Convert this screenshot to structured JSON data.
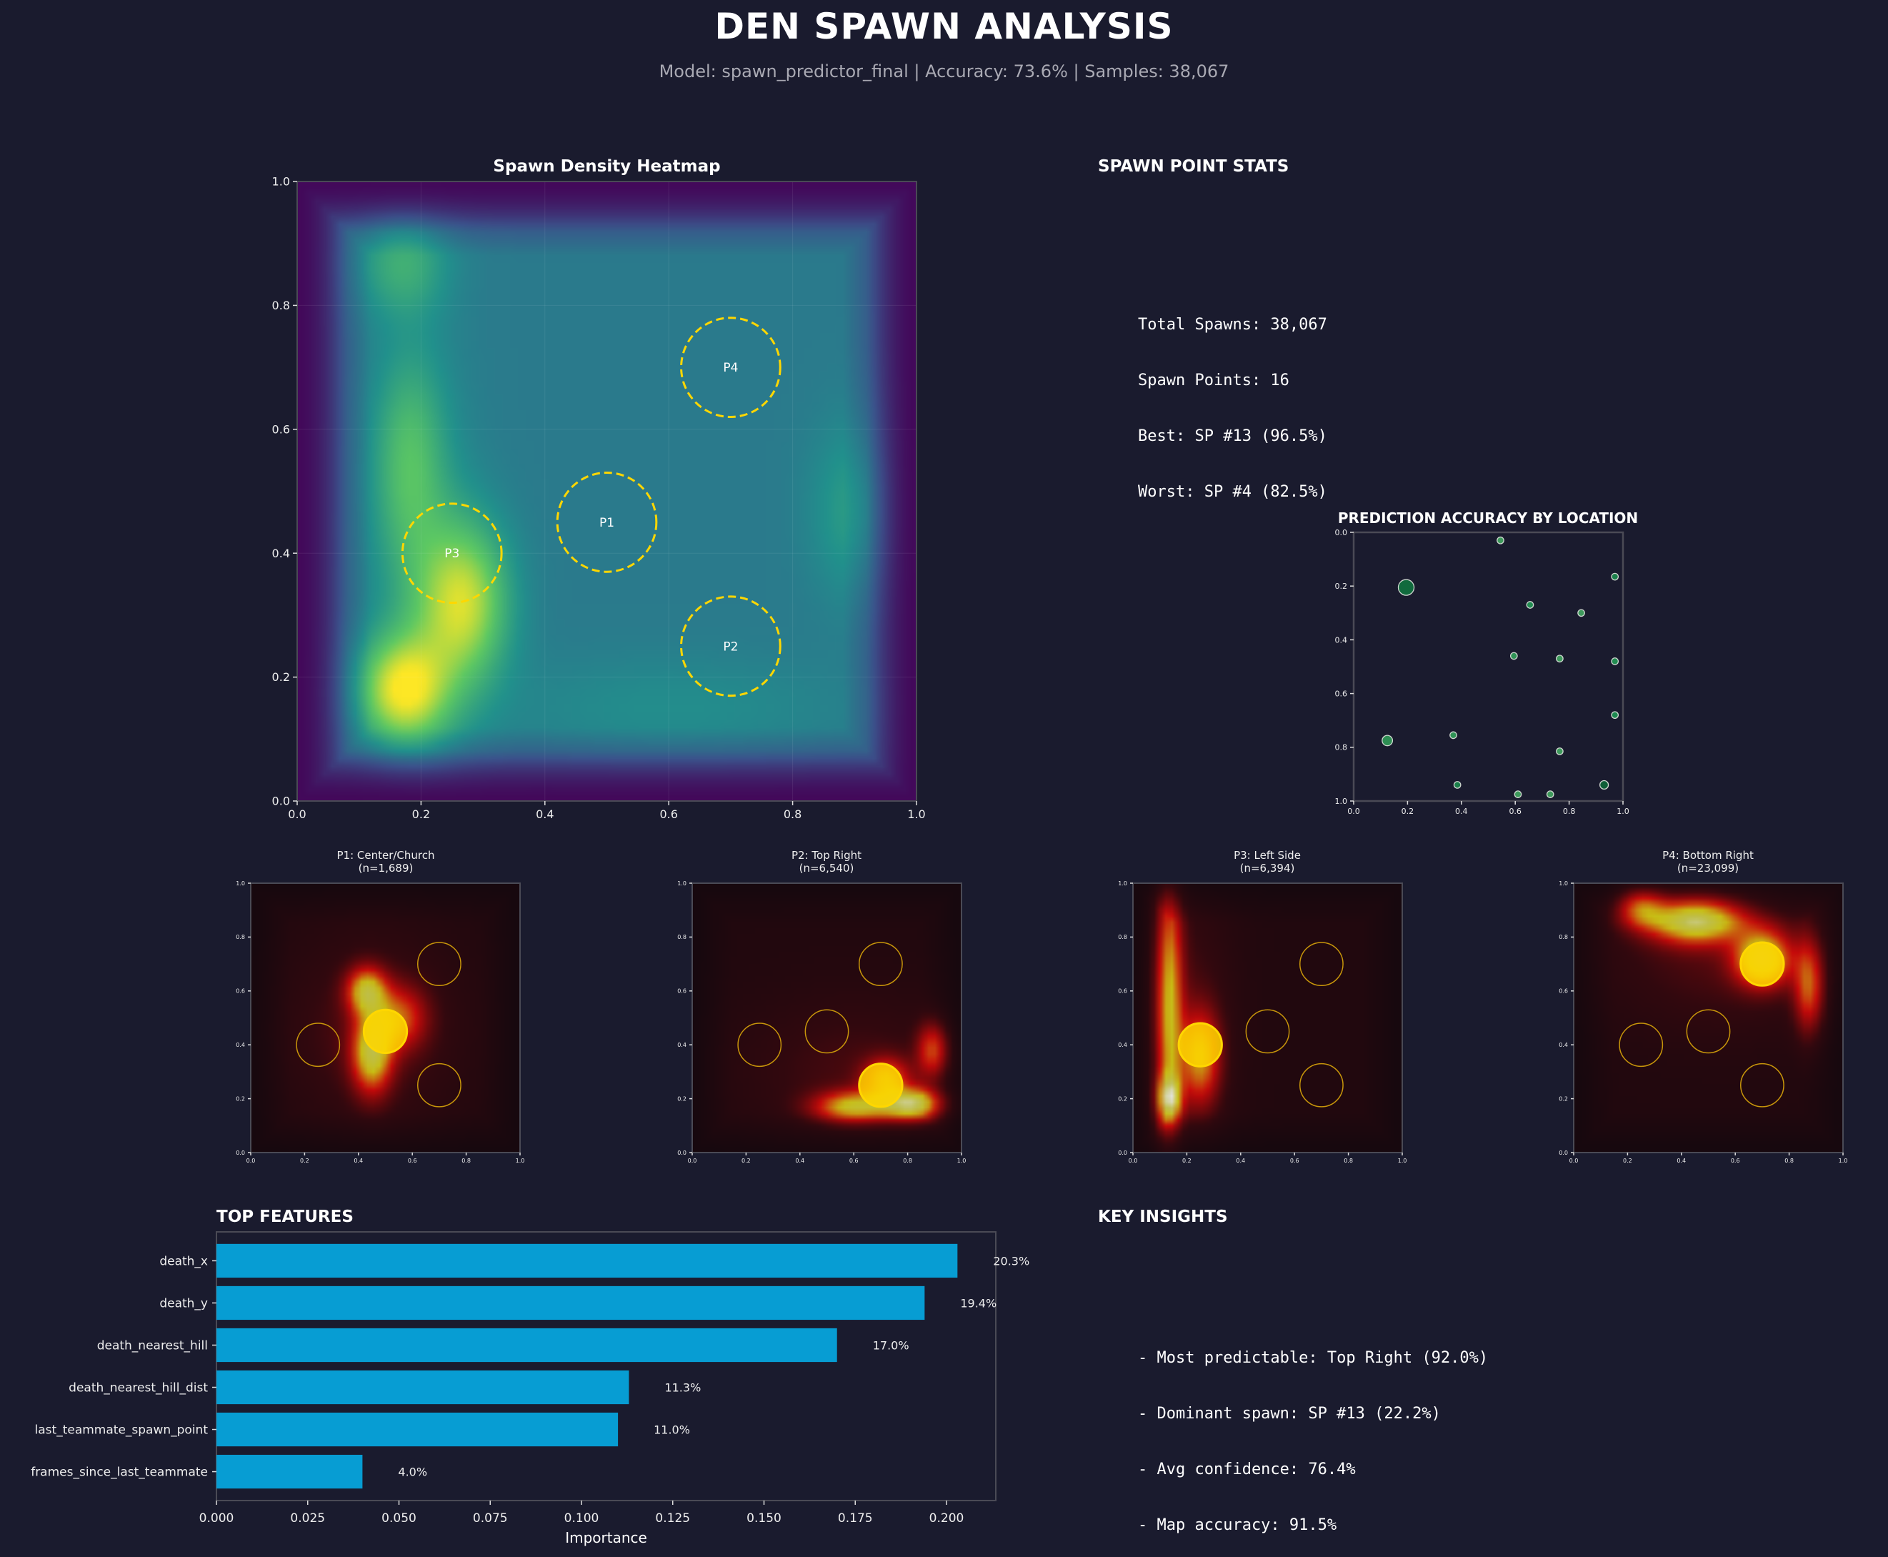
{
  "header": {
    "title": "DEN SPAWN ANALYSIS",
    "subtitle": "Model: spawn_predictor_final | Accuracy: 73.6% | Samples: 38,067"
  },
  "stats": {
    "title": "SPAWN POINT STATS",
    "lines": [
      "Total Spawns: 38,067",
      "Spawn Points: 16",
      "Best: SP #13 (96.5%)",
      "Worst: SP #4 (82.5%)"
    ]
  },
  "insights": {
    "title": "KEY INSIGHTS",
    "lines": [
      "- Most predictable: Top Right (92.0%)",
      "- Dominant spawn: SP #13 (22.2%)",
      "- Avg confidence: 76.4%",
      "- Map accuracy: 91.5%"
    ]
  },
  "colors": {
    "background": "#1a1b2e",
    "bar": "#079dd3",
    "hill": "#ffd700",
    "axis": "#4a4a55"
  },
  "chart_data": [
    {
      "id": "density",
      "type": "heatmap",
      "title": "Spawn Density Heatmap",
      "colormap": "viridis",
      "xlim": [
        0,
        1
      ],
      "ylim": [
        0,
        1
      ],
      "xticks": [
        "0.0",
        "0.2",
        "0.4",
        "0.6",
        "0.8",
        "1.0"
      ],
      "yticks": [
        "0.0",
        "0.2",
        "0.4",
        "0.6",
        "0.8",
        "1.0"
      ],
      "grid": true,
      "hotspots": [
        {
          "x": 0.17,
          "y": 0.18,
          "level": "high"
        },
        {
          "x": 0.27,
          "y": 0.32,
          "level": "high"
        },
        {
          "x": 0.18,
          "y": 0.55,
          "level": "medium"
        },
        {
          "x": 0.17,
          "y": 0.87,
          "level": "medium"
        },
        {
          "x": 0.9,
          "y": 0.47,
          "level": "medium"
        }
      ],
      "hills": [
        {
          "label": "P1",
          "x": 0.5,
          "y": 0.45,
          "r": 0.08
        },
        {
          "label": "P2",
          "x": 0.7,
          "y": 0.25,
          "r": 0.08
        },
        {
          "label": "P3",
          "x": 0.25,
          "y": 0.4,
          "r": 0.08
        },
        {
          "label": "P4",
          "x": 0.7,
          "y": 0.7,
          "r": 0.08
        }
      ]
    },
    {
      "id": "accuracy",
      "type": "scatter",
      "title": "PREDICTION ACCURACY BY LOCATION",
      "xlim": [
        0,
        1
      ],
      "ylim": [
        0,
        1
      ],
      "y_inverted": true,
      "xticks": [
        "0.0",
        "0.2",
        "0.4",
        "0.6",
        "0.8",
        "1.0"
      ],
      "yticks": [
        "0.0",
        "0.2",
        "0.4",
        "0.6",
        "0.8",
        "1.0"
      ],
      "points": [
        {
          "x": 0.545,
          "y": 0.03,
          "size": 1,
          "color": "#3e9a5c"
        },
        {
          "x": 0.97,
          "y": 0.165,
          "size": 1,
          "color": "#1a7f4a"
        },
        {
          "x": 0.195,
          "y": 0.205,
          "size": 5.5,
          "color": "#106a3d"
        },
        {
          "x": 0.655,
          "y": 0.27,
          "size": 1,
          "color": "#228c52"
        },
        {
          "x": 0.845,
          "y": 0.3,
          "size": 1,
          "color": "#3e9a5c"
        },
        {
          "x": 0.595,
          "y": 0.46,
          "size": 1,
          "color": "#2f9356"
        },
        {
          "x": 0.765,
          "y": 0.47,
          "size": 1,
          "color": "#3e9a5c"
        },
        {
          "x": 0.97,
          "y": 0.48,
          "size": 1,
          "color": "#228c52"
        },
        {
          "x": 0.97,
          "y": 0.68,
          "size": 1,
          "color": "#1d8a50"
        },
        {
          "x": 0.125,
          "y": 0.775,
          "size": 2.4,
          "color": "#2e8e54"
        },
        {
          "x": 0.37,
          "y": 0.755,
          "size": 1,
          "color": "#2f9356"
        },
        {
          "x": 0.765,
          "y": 0.815,
          "size": 1,
          "color": "#3e9a5c"
        },
        {
          "x": 0.385,
          "y": 0.94,
          "size": 1,
          "color": "#1a7f4a"
        },
        {
          "x": 0.93,
          "y": 0.94,
          "size": 1.6,
          "color": "#0f5e37"
        },
        {
          "x": 0.61,
          "y": 0.975,
          "size": 1,
          "color": "#3e9a5c"
        },
        {
          "x": 0.73,
          "y": 0.975,
          "size": 1,
          "color": "#3e9a5c"
        }
      ]
    },
    {
      "id": "p1",
      "type": "heatmap",
      "colormap": "hot",
      "title": "P1: Center/Church",
      "subtitle": "(n=1,689)",
      "highlight": "P1",
      "xticks": [
        "0.0",
        "0.2",
        "0.4",
        "0.6",
        "0.8",
        "1.0"
      ],
      "yticks": [
        "0.0",
        "0.2",
        "0.4",
        "0.6",
        "0.8",
        "1.0"
      ],
      "hotspots": [
        {
          "x": 0.45,
          "y": 0.37,
          "level": "high"
        },
        {
          "x": 0.43,
          "y": 0.6,
          "level": "high"
        }
      ]
    },
    {
      "id": "p2",
      "type": "heatmap",
      "colormap": "hot",
      "title": "P2: Top Right",
      "subtitle": "(n=6,540)",
      "highlight": "P2",
      "xticks": [
        "0.0",
        "0.2",
        "0.4",
        "0.6",
        "0.8",
        "1.0"
      ],
      "yticks": [
        "0.0",
        "0.2",
        "0.4",
        "0.6",
        "0.8",
        "1.0"
      ],
      "hotspots": [
        {
          "x": 0.82,
          "y": 0.18,
          "level": "high"
        },
        {
          "x": 0.6,
          "y": 0.17,
          "level": "high"
        },
        {
          "x": 0.9,
          "y": 0.38,
          "level": "medium"
        }
      ]
    },
    {
      "id": "p3",
      "type": "heatmap",
      "colormap": "hot",
      "title": "P3: Left Side",
      "subtitle": "(n=6,394)",
      "highlight": "P3",
      "xticks": [
        "0.0",
        "0.2",
        "0.4",
        "0.6",
        "0.8",
        "1.0"
      ],
      "yticks": [
        "0.0",
        "0.2",
        "0.4",
        "0.6",
        "0.8",
        "1.0"
      ],
      "hotspots": [
        {
          "x": 0.13,
          "y": 0.2,
          "level": "high"
        },
        {
          "x": 0.14,
          "y": 0.6,
          "level": "high"
        },
        {
          "x": 0.25,
          "y": 0.35,
          "level": "high"
        }
      ]
    },
    {
      "id": "p4",
      "type": "heatmap",
      "colormap": "hot",
      "title": "P4: Bottom Right",
      "subtitle": "(n=23,099)",
      "highlight": "P4",
      "xticks": [
        "0.0",
        "0.2",
        "0.4",
        "0.6",
        "0.8",
        "1.0"
      ],
      "yticks": [
        "0.0",
        "0.2",
        "0.4",
        "0.6",
        "0.8",
        "1.0"
      ],
      "hotspots": [
        {
          "x": 0.45,
          "y": 0.87,
          "level": "high"
        },
        {
          "x": 0.7,
          "y": 0.72,
          "level": "high"
        },
        {
          "x": 0.88,
          "y": 0.6,
          "level": "medium"
        }
      ]
    },
    {
      "id": "features",
      "type": "bar",
      "orientation": "horizontal",
      "title": "TOP FEATURES",
      "xlabel": "Importance",
      "xlim": [
        0,
        0.2135
      ],
      "xticks": [
        "0.000",
        "0.025",
        "0.050",
        "0.075",
        "0.100",
        "0.125",
        "0.150",
        "0.175",
        "0.200"
      ],
      "categories": [
        "death_x",
        "death_y",
        "death_nearest_hill",
        "death_nearest_hill_dist",
        "last_teammate_spawn_point",
        "frames_since_last_teammate"
      ],
      "values": [
        0.203,
        0.194,
        0.17,
        0.113,
        0.11,
        0.04
      ],
      "labels": [
        "20.3%",
        "19.4%",
        "17.0%",
        "11.3%",
        "11.0%",
        "4.0%"
      ]
    }
  ]
}
